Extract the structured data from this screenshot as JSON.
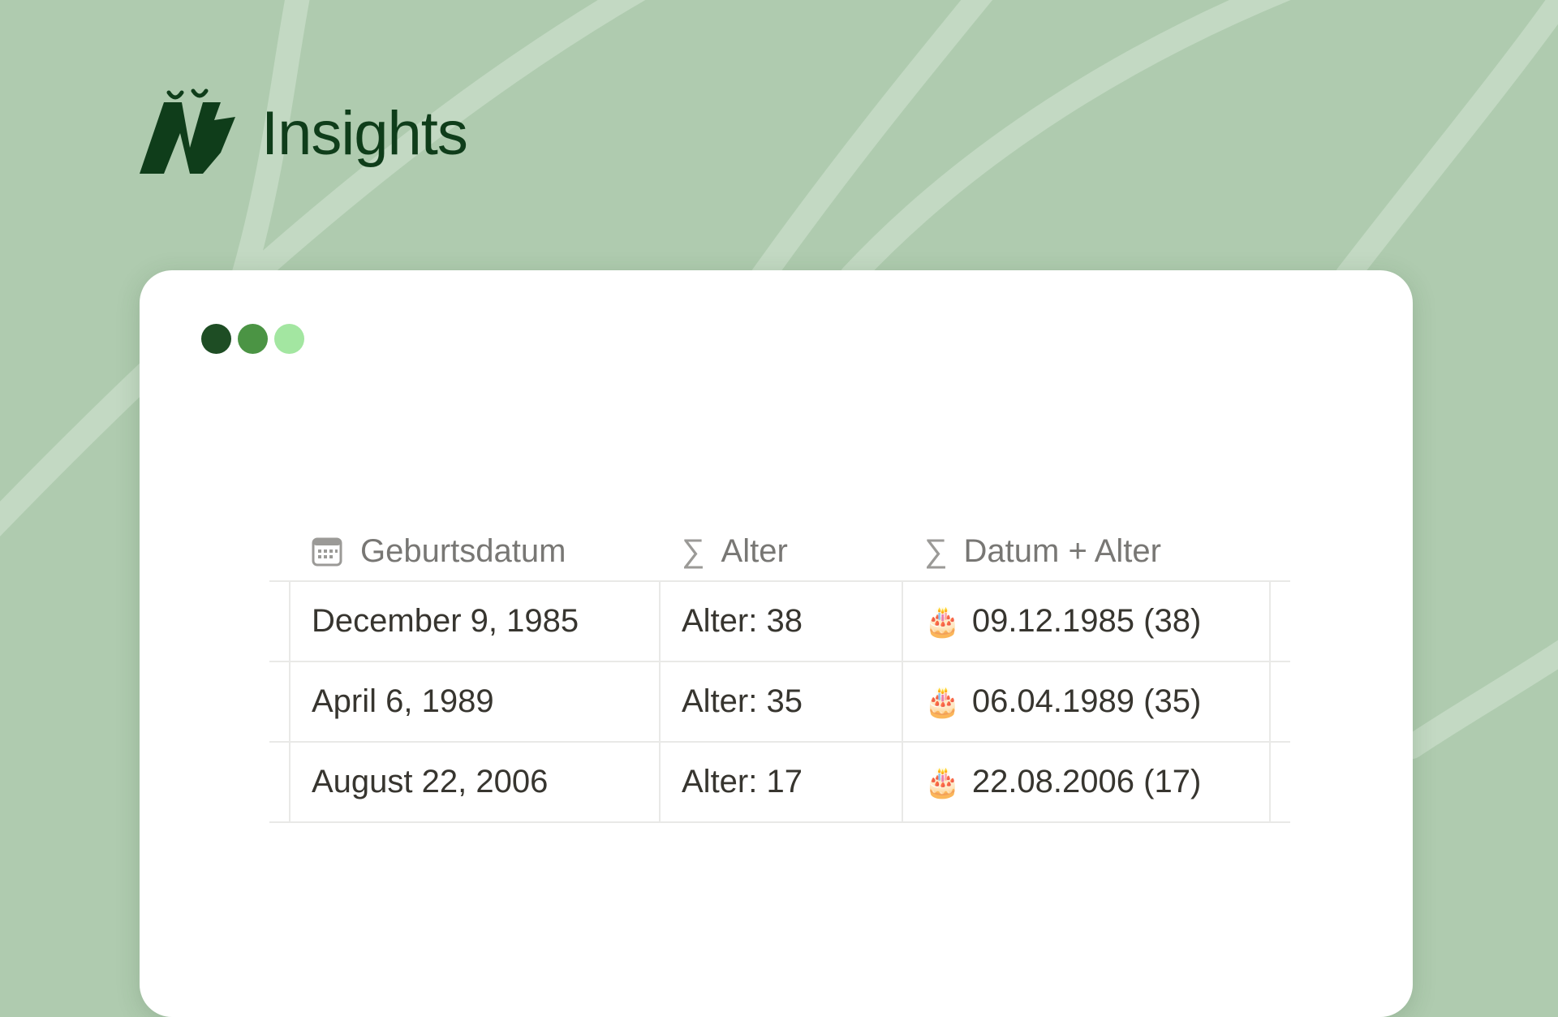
{
  "brand": {
    "name": "Insights",
    "logo_icon": "brand-logo-mark"
  },
  "window_controls": {
    "colors": [
      "#1e4d24",
      "#4b9444",
      "#a3e6a1"
    ]
  },
  "table": {
    "columns": [
      {
        "label": "Geburtsdatum",
        "icon": "calendar-icon"
      },
      {
        "label": "Alter",
        "icon": "formula-sigma-icon",
        "icon_glyph": "∑"
      },
      {
        "label": "Datum + Alter",
        "icon": "formula-sigma-icon",
        "icon_glyph": "∑"
      }
    ],
    "rows": [
      {
        "geburtsdatum": "December 9, 1985",
        "alter": "Alter: 38",
        "datum_alter": "09.12.1985 (38)",
        "emoji": "🎂"
      },
      {
        "geburtsdatum": "April 6, 1989",
        "alter": "Alter: 35",
        "datum_alter": "06.04.1989 (35)",
        "emoji": "🎂"
      },
      {
        "geburtsdatum": "August 22, 2006",
        "alter": "Alter: 17",
        "datum_alter": "22.08.2006 (17)",
        "emoji": "🎂"
      }
    ]
  },
  "colors": {
    "background": "#afcbaf",
    "brand_text": "#0f3d1a",
    "card": "#ffffff"
  }
}
